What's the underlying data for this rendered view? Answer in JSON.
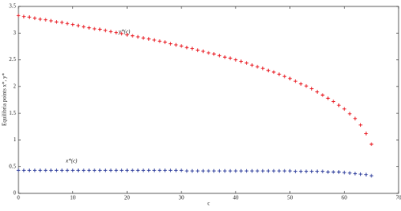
{
  "chart_data": {
    "type": "scatter",
    "x_label": "c",
    "y_label": "Equilibria points x*, y*",
    "annotations": [
      "y*(c)",
      "x*(c)"
    ],
    "x": [
      0,
      1,
      2,
      3,
      4,
      5,
      6,
      7,
      8,
      9,
      10,
      11,
      12,
      13,
      14,
      15,
      16,
      17,
      18,
      19,
      20,
      21,
      22,
      23,
      24,
      25,
      26,
      27,
      28,
      29,
      30,
      31,
      32,
      33,
      34,
      35,
      36,
      37,
      38,
      39,
      40,
      41,
      42,
      43,
      44,
      45,
      46,
      47,
      48,
      49,
      50,
      51,
      52,
      53,
      54,
      55,
      56,
      57,
      58,
      59,
      60,
      61,
      62,
      63,
      64,
      65
    ],
    "series": [
      {
        "color": "#e8131b",
        "values": [
          3.33,
          3.31,
          3.3,
          3.28,
          3.26,
          3.25,
          3.23,
          3.21,
          3.2,
          3.18,
          3.16,
          3.14,
          3.12,
          3.1,
          3.08,
          3.07,
          3.05,
          3.03,
          3.01,
          2.99,
          2.97,
          2.95,
          2.93,
          2.91,
          2.89,
          2.87,
          2.85,
          2.83,
          2.8,
          2.78,
          2.76,
          2.73,
          2.71,
          2.68,
          2.66,
          2.63,
          2.61,
          2.58,
          2.55,
          2.53,
          2.5,
          2.47,
          2.44,
          2.4,
          2.37,
          2.34,
          2.3,
          2.27,
          2.23,
          2.19,
          2.15,
          2.1,
          2.05,
          2.01,
          1.96,
          1.9,
          1.84,
          1.78,
          1.72,
          1.65,
          1.58,
          1.49,
          1.4,
          1.28,
          1.12,
          0.92
        ]
      },
      {
        "color": "#2a3a9a",
        "values": [
          0.43,
          0.43,
          0.43,
          0.43,
          0.43,
          0.43,
          0.43,
          0.43,
          0.43,
          0.43,
          0.43,
          0.43,
          0.43,
          0.43,
          0.43,
          0.43,
          0.43,
          0.43,
          0.43,
          0.43,
          0.43,
          0.43,
          0.43,
          0.43,
          0.43,
          0.43,
          0.43,
          0.43,
          0.43,
          0.43,
          0.43,
          0.42,
          0.42,
          0.42,
          0.42,
          0.42,
          0.42,
          0.42,
          0.42,
          0.42,
          0.42,
          0.42,
          0.42,
          0.42,
          0.42,
          0.42,
          0.42,
          0.42,
          0.42,
          0.42,
          0.42,
          0.41,
          0.41,
          0.41,
          0.41,
          0.41,
          0.41,
          0.4,
          0.4,
          0.4,
          0.39,
          0.38,
          0.37,
          0.36,
          0.35,
          0.33
        ]
      }
    ],
    "xlim": [
      0,
      70
    ],
    "xticks": [
      0,
      10,
      20,
      30,
      40,
      50,
      60,
      70
    ],
    "ylim": [
      0,
      3.5
    ],
    "yticks": [
      0,
      0.5,
      1,
      1.5,
      2,
      2.5,
      3,
      3.5
    ]
  }
}
